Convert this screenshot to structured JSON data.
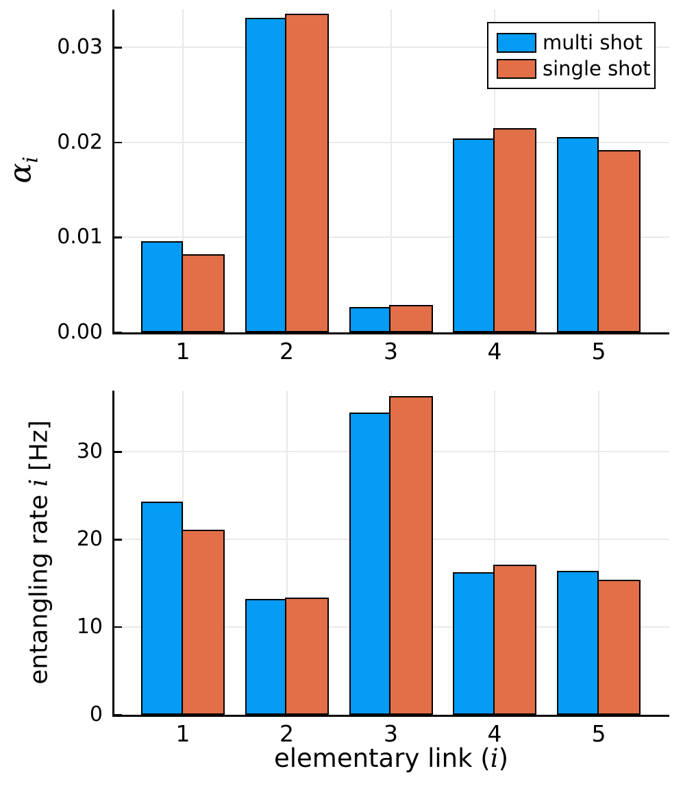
{
  "figure": {
    "legend": {
      "items": [
        {
          "label": "multi shot",
          "color": "#049CF4"
        },
        {
          "label": "single shot",
          "color": "#E26F47"
        }
      ]
    },
    "top_panel": {
      "ylabel": {
        "base": "α",
        "subscript": "i"
      }
    },
    "bottom_panel": {
      "ylabel": {
        "pre": "entangling rate ",
        "italic": "i",
        "post": " [Hz]"
      },
      "xlabel": {
        "pre": "elementary link (",
        "italic": "i",
        "post": ")"
      }
    }
  },
  "chart_data": [
    {
      "type": "bar",
      "panel": "top",
      "title": "",
      "xlabel": "",
      "ylabel": "alpha_i",
      "categories": [
        "1",
        "2",
        "3",
        "4",
        "5"
      ],
      "series": [
        {
          "name": "multi shot",
          "color": "#049CF4",
          "values": [
            0.0096,
            0.0331,
            0.0027,
            0.0204,
            0.0206
          ]
        },
        {
          "name": "single shot",
          "color": "#E26F47",
          "values": [
            0.0082,
            0.0336,
            0.0029,
            0.0215,
            0.0192
          ]
        }
      ],
      "yticks": [
        0,
        0.01,
        0.02,
        0.03
      ],
      "ytick_labels": [
        "0.00",
        "0.01",
        "0.02",
        "0.03"
      ],
      "ylim": [
        0,
        0.034
      ],
      "grid": true,
      "legend_position": "top-right"
    },
    {
      "type": "bar",
      "panel": "bottom",
      "title": "",
      "xlabel": "elementary link (i)",
      "ylabel": "entangling rate i [Hz]",
      "categories": [
        "1",
        "2",
        "3",
        "4",
        "5"
      ],
      "series": [
        {
          "name": "multi shot",
          "color": "#049CF4",
          "values": [
            24.3,
            13.2,
            34.5,
            16.3,
            16.4
          ]
        },
        {
          "name": "single shot",
          "color": "#E26F47",
          "values": [
            21.1,
            13.4,
            36.4,
            17.1,
            15.4
          ]
        }
      ],
      "yticks": [
        0,
        10,
        20,
        30
      ],
      "ytick_labels": [
        "0",
        "10",
        "20",
        "30"
      ],
      "ylim": [
        0,
        37
      ],
      "grid": true,
      "legend_position": "none"
    }
  ]
}
